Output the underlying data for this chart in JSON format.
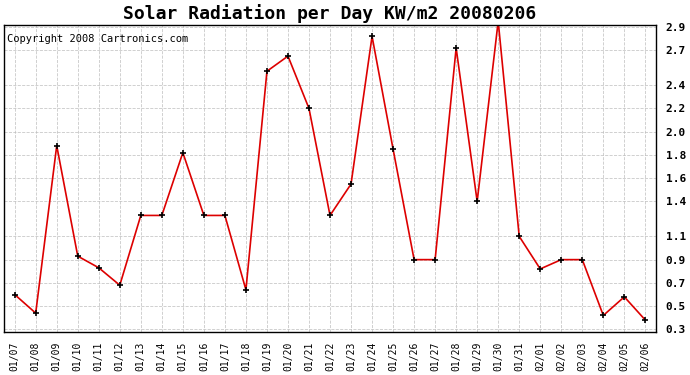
{
  "title": "Solar Radiation per Day KW/m2 20080206",
  "copyright": "Copyright 2008 Cartronics.com",
  "dates": [
    "01/07",
    "01/08",
    "01/09",
    "01/10",
    "01/11",
    "01/12",
    "01/13",
    "01/14",
    "01/15",
    "01/16",
    "01/17",
    "01/18",
    "01/19",
    "01/20",
    "01/21",
    "01/22",
    "01/23",
    "01/24",
    "01/25",
    "01/26",
    "01/27",
    "01/28",
    "01/29",
    "01/30",
    "01/31",
    "02/01",
    "02/02",
    "02/03",
    "02/04",
    "02/05",
    "02/06"
  ],
  "values": [
    0.6,
    0.44,
    1.88,
    0.93,
    0.83,
    0.68,
    1.28,
    1.28,
    1.82,
    1.28,
    1.28,
    0.64,
    2.52,
    2.65,
    2.2,
    1.28,
    1.55,
    2.82,
    1.85,
    0.9,
    0.9,
    2.72,
    1.4,
    2.95,
    1.1,
    0.82,
    0.9,
    0.9,
    0.42,
    0.58,
    0.38
  ],
  "ylim_min": 0.3,
  "ylim_max": 2.9,
  "yticks": [
    0.3,
    0.5,
    0.7,
    0.9,
    1.1,
    1.4,
    1.6,
    1.8,
    2.0,
    2.2,
    2.4,
    2.7,
    2.9
  ],
  "line_color": "#dd0000",
  "marker": "+",
  "marker_color": "#000000",
  "grid_color": "#bbbbbb",
  "bg_color": "#ffffff",
  "title_fontsize": 13,
  "tick_fontsize": 7,
  "copyright_fontsize": 7.5
}
